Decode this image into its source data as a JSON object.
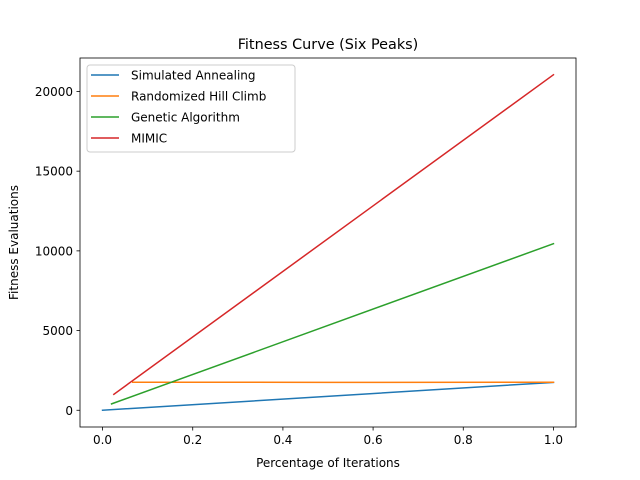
{
  "chart_data": {
    "type": "line",
    "title": "Fitness Curve (Six Peaks)",
    "xlabel": "Percentage of Iterations",
    "ylabel": "Fitness Evaluations",
    "xlim": [
      -0.05,
      1.05
    ],
    "ylim": [
      -1050,
      22100
    ],
    "xticks": [
      0.0,
      0.2,
      0.4,
      0.6,
      0.8,
      1.0
    ],
    "xtick_labels": [
      "0.0",
      "0.2",
      "0.4",
      "0.6",
      "0.8",
      "1.0"
    ],
    "yticks": [
      0,
      5000,
      10000,
      15000,
      20000
    ],
    "ytick_labels": [
      "0",
      "5000",
      "10000",
      "15000",
      "20000"
    ],
    "grid": false,
    "legend_position": "top-left",
    "series": [
      {
        "name": "Simulated Annealing",
        "color": "#1f77b4",
        "x": [
          0.0,
          1.0
        ],
        "y": [
          0,
          1750
        ]
      },
      {
        "name": "Randomized Hill Climb",
        "color": "#ff7f0e",
        "x": [
          0.067,
          0.5,
          1.0
        ],
        "y": [
          1760,
          1750,
          1760
        ]
      },
      {
        "name": "Genetic Algorithm",
        "color": "#2ca02c",
        "x": [
          0.02,
          1.0
        ],
        "y": [
          400,
          10450
        ]
      },
      {
        "name": "MIMIC",
        "color": "#d62728",
        "x": [
          0.025,
          1.0
        ],
        "y": [
          1000,
          21050
        ]
      }
    ]
  }
}
